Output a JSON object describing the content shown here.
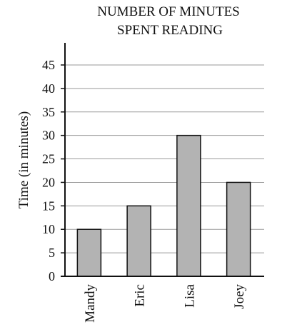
{
  "chart_data": {
    "type": "bar",
    "title": [
      "NUMBER OF MINUTES",
      "SPENT READING"
    ],
    "ylabel": "Time (in minutes)",
    "xlabel": "",
    "categories": [
      "Mandy",
      "Eric",
      "Lisa",
      "Joey"
    ],
    "values": [
      10,
      15,
      30,
      20
    ],
    "ylim": [
      0,
      45
    ],
    "yticks": [
      0,
      5,
      10,
      15,
      20,
      25,
      30,
      35,
      40,
      45
    ],
    "grid": true,
    "bar_color": "#b3b3b3"
  }
}
